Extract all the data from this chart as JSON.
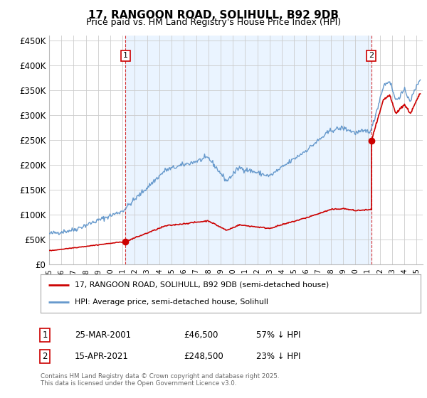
{
  "title": "17, RANGOON ROAD, SOLIHULL, B92 9DB",
  "subtitle": "Price paid vs. HM Land Registry's House Price Index (HPI)",
  "title_fontsize": 11,
  "subtitle_fontsize": 9,
  "background_color": "#ffffff",
  "plot_bg_color": "#ffffff",
  "grid_color": "#cccccc",
  "red_color": "#cc0000",
  "blue_color": "#6699cc",
  "shade_color": "#ddeeff",
  "ylim": [
    0,
    460000
  ],
  "yticks": [
    0,
    50000,
    100000,
    150000,
    200000,
    250000,
    300000,
    350000,
    400000,
    450000
  ],
  "ytick_labels": [
    "£0",
    "£50K",
    "£100K",
    "£150K",
    "£200K",
    "£250K",
    "£300K",
    "£350K",
    "£400K",
    "£450K"
  ],
  "sale1_date_num": 2001.23,
  "sale1_price": 46500,
  "sale1_label": "1",
  "sale2_date_num": 2021.29,
  "sale2_price": 248500,
  "sale2_label": "2",
  "legend_entry1": "17, RANGOON ROAD, SOLIHULL, B92 9DB (semi-detached house)",
  "legend_entry2": "HPI: Average price, semi-detached house, Solihull",
  "annotation1_date": "25-MAR-2001",
  "annotation1_price": "£46,500",
  "annotation1_hpi": "57% ↓ HPI",
  "annotation2_date": "15-APR-2021",
  "annotation2_price": "£248,500",
  "annotation2_hpi": "23% ↓ HPI",
  "footer": "Contains HM Land Registry data © Crown copyright and database right 2025.\nThis data is licensed under the Open Government Licence v3.0.",
  "xmin": 1995.0,
  "xmax": 2025.5
}
